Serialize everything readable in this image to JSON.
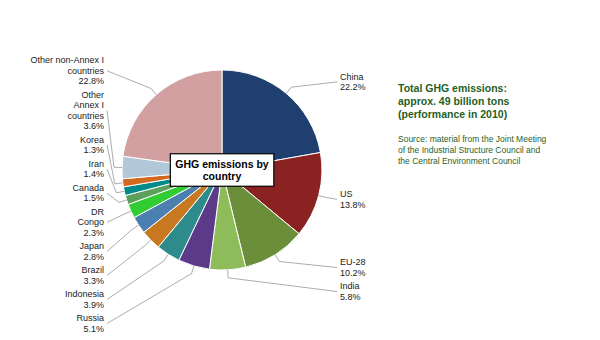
{
  "chart_data": {
    "type": "pie",
    "title": "GHG emissions by\ncountry",
    "categories": [
      "China",
      "US",
      "EU-28",
      "India",
      "Russia",
      "Indonesia",
      "Brazil",
      "Japan",
      "DR\nCongo",
      "Canada",
      "Iran",
      "Korea",
      "Other\nAnnex I\ncountries",
      "Other non-Annex I\ncountries"
    ],
    "values": [
      22.2,
      13.8,
      10.2,
      5.8,
      5.1,
      3.9,
      3.3,
      2.8,
      2.3,
      1.5,
      1.4,
      1.3,
      3.6,
      22.8
    ],
    "value_labels": [
      "22.2%",
      "13.8%",
      "10.2%",
      "5.8%",
      "5.1%",
      "3.9%",
      "3.3%",
      "2.8%",
      "2.3%",
      "1.5%",
      "1.4%",
      "1.3%",
      "3.6%",
      "22.8%"
    ],
    "colors": [
      "#1F3F6E",
      "#8B2222",
      "#6B8E3A",
      "#8FBC5A",
      "#5B3A8A",
      "#2E8B8B",
      "#C87820",
      "#4A7FB0",
      "#32CD32",
      "#5BA05B",
      "#008B8B",
      "#D2691E",
      "#B0C8D8",
      "#D2A0A0"
    ],
    "data_labels": true,
    "annotations": [
      "Total GHG emissions:\napprox. 49 billion tons\n(performance in 2010)",
      "Source: material from the Joint Meeting\nof the Industrial Structure Council and\nthe Central Environment Council"
    ]
  }
}
